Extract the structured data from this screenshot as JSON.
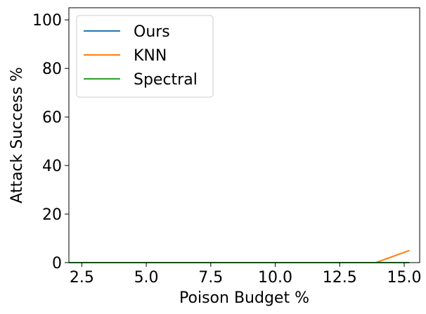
{
  "chart_data": {
    "type": "line",
    "xlabel": "Poison Budget %",
    "ylabel": "Attack Success %",
    "xlim": [
      2.0,
      15.6
    ],
    "ylim": [
      0,
      105
    ],
    "xticks": [
      2.5,
      5.0,
      7.5,
      10.0,
      12.5,
      15.0
    ],
    "xtick_labels": [
      "2.5",
      "5.0",
      "7.5",
      "10.0",
      "12.5",
      "15.0"
    ],
    "yticks": [
      0,
      20,
      40,
      60,
      80,
      100
    ],
    "ytick_labels": [
      "0",
      "20",
      "40",
      "60",
      "80",
      "100"
    ],
    "grid": false,
    "legend_position": "top-left",
    "series": [
      {
        "name": "Ours",
        "color": "#1f77b4",
        "x": [
          2.0,
          15.2
        ],
        "y": [
          0,
          0
        ]
      },
      {
        "name": "KNN",
        "color": "#ff7f0e",
        "x": [
          2.0,
          13.9,
          15.2
        ],
        "y": [
          0,
          0,
          5
        ]
      },
      {
        "name": "Spectral",
        "color": "#2ca02c",
        "x": [
          2.0,
          15.2
        ],
        "y": [
          0,
          0
        ]
      }
    ]
  }
}
